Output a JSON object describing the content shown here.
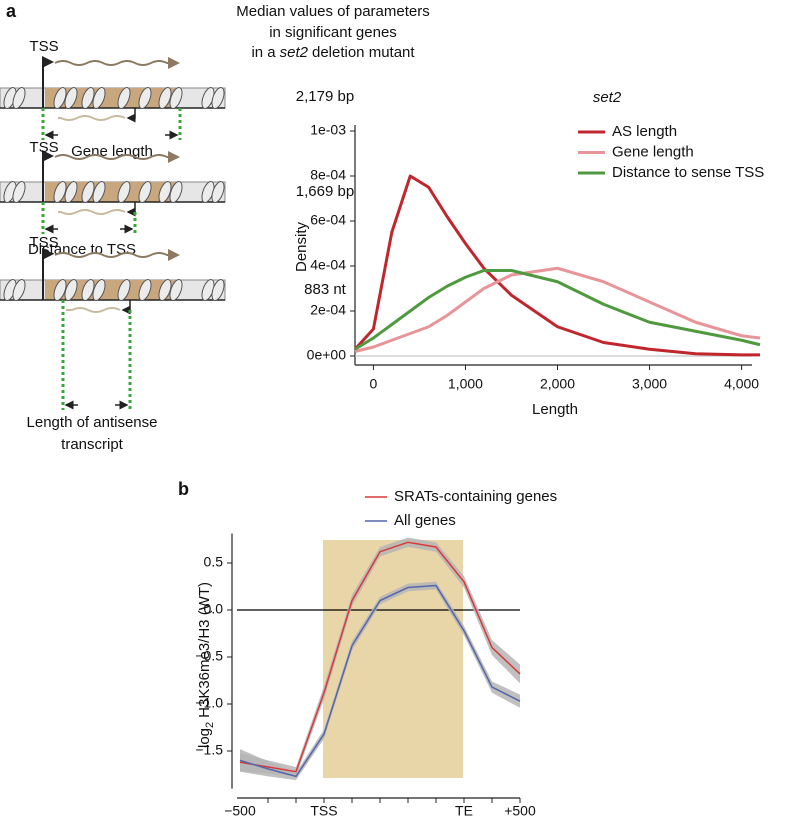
{
  "panel_labels": [
    "a",
    "b"
  ],
  "parameters": {
    "title": [
      "Median values of parameters",
      "in significant genes"
    ],
    "title_last": [
      "in a",
      "set2",
      "deletion mutant"
    ],
    "rows": [
      {
        "tss": "TSS",
        "label": [
          "Gene length"
        ],
        "median": "2,179 bp"
      },
      {
        "tss": "TSS",
        "label": [
          "Distance to TSS"
        ],
        "median": "1,669 bp"
      },
      {
        "tss": "TSS",
        "label": [
          "Length of antisense",
          "transcript"
        ],
        "median": "883 nt"
      }
    ]
  },
  "chart_data": [
    {
      "type": "line",
      "title": "set2",
      "x_label": "Length",
      "y_label": "Density",
      "x": [
        -200,
        0,
        200,
        400,
        600,
        800,
        1000,
        1200,
        1500,
        2000,
        2500,
        3000,
        3500,
        4000,
        4200
      ],
      "series": [
        {
          "name": "AS length",
          "color": "#c0272d",
          "values": [
            3e-05,
            0.00012,
            0.00055,
            0.0008,
            0.00075,
            0.00062,
            0.0005,
            0.00039,
            0.00027,
            0.00013,
            6e-05,
            3e-05,
            1e-05,
            5e-06,
            5e-06
          ]
        },
        {
          "name": "Gene length",
          "color": "#e8959a",
          "values": [
            2e-05,
            4e-05,
            7e-05,
            0.0001,
            0.00013,
            0.00018,
            0.00024,
            0.0003,
            0.00036,
            0.00039,
            0.00033,
            0.00024,
            0.00015,
            9e-05,
            8e-05
          ]
        },
        {
          "name": "Distance to sense TSS",
          "color": "#4f9a3f",
          "values": [
            3e-05,
            8e-05,
            0.00014,
            0.0002,
            0.00026,
            0.00031,
            0.00035,
            0.00038,
            0.00038,
            0.00033,
            0.00023,
            0.00015,
            0.00011,
            7e-05,
            5e-05
          ]
        }
      ],
      "xlim": [
        -200,
        4200
      ],
      "ylim": [
        -4e-05,
        0.001
      ],
      "xticks": [
        0,
        {
          "value": 1000,
          "label": "1,000"
        },
        {
          "value": 2000,
          "label": "2,000"
        },
        {
          "value": 3000,
          "label": "3,000"
        },
        {
          "value": 4000,
          "label": "4,000"
        }
      ],
      "yticks": [
        {
          "value": 0,
          "label": "0e+00"
        },
        {
          "value": 0.0002,
          "label": "2e-04"
        },
        {
          "value": 0.0004,
          "label": "4e-04"
        },
        {
          "value": 0.0006,
          "label": "6e-04"
        },
        {
          "value": 0.0008,
          "label": "8e-04"
        },
        {
          "value": 0.001,
          "label": "1e-03"
        }
      ],
      "zero_line": "#c8c8c8",
      "legend": "upper right"
    },
    {
      "type": "line",
      "y_label": [
        "log",
        "2",
        "H3K36me3/H3 (WT)"
      ],
      "categories": [
        "−500",
        null,
        null,
        "TSS",
        null,
        null,
        null,
        null,
        "TE",
        null,
        "+500"
      ],
      "series": [
        {
          "name": "SRATs-containing genes",
          "color": "#d9383a",
          "values": [
            -1.62,
            -1.67,
            -1.72,
            -0.88,
            0.1,
            0.62,
            0.72,
            0.67,
            0.3,
            -0.4,
            -0.68
          ],
          "errors": [
            0.1,
            0.07,
            0.05,
            0.07,
            0.06,
            0.05,
            0.05,
            0.05,
            0.06,
            0.08,
            0.1
          ]
        },
        {
          "name": "All genes",
          "color": "#5566aa",
          "values": [
            -1.6,
            -1.69,
            -1.77,
            -1.32,
            -0.38,
            0.1,
            0.24,
            0.26,
            -0.22,
            -0.82,
            -0.97
          ],
          "errors": [
            0.12,
            0.08,
            0.04,
            0.05,
            0.05,
            0.04,
            0.04,
            0.04,
            0.05,
            0.06,
            0.07
          ]
        }
      ],
      "band_color": "#b5b5b5",
      "ylim": [
        -1.9,
        0.75
      ],
      "yticks": [
        0.5,
        {
          "value": 0,
          "label": "0.0"
        },
        {
          "value": -0.5,
          "label": "−0.5"
        },
        {
          "value": -1,
          "label": "−1.0"
        },
        {
          "value": -1.5,
          "label": "−1.5"
        }
      ],
      "zero_line": "#000000",
      "legend": "top"
    }
  ]
}
